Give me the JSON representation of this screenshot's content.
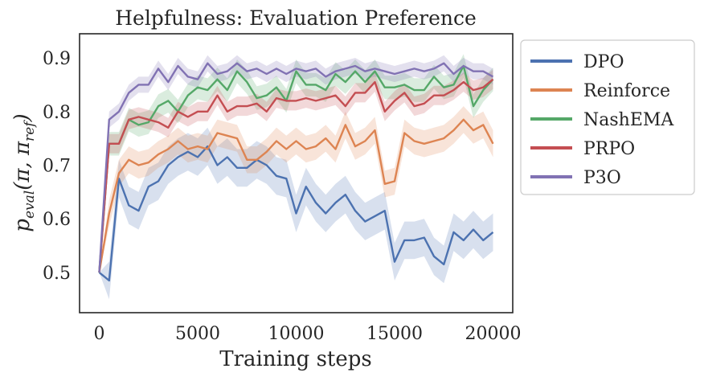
{
  "chart_data": {
    "type": "line",
    "title": "Helpfulness: Evaluation Preference",
    "xlabel": "Training steps",
    "ylabel": "p_eval(π, π_ref)",
    "ylabel_parts": {
      "p": "p",
      "sub": "eval",
      "open": "(π, π",
      "sub2": "ref",
      "close": ")"
    },
    "xlim": [
      -1000,
      21000
    ],
    "ylim": [
      0.425,
      0.945
    ],
    "xticks": [
      0,
      5000,
      10000,
      15000,
      20000
    ],
    "yticks": [
      0.5,
      0.6,
      0.7,
      0.8,
      0.9
    ],
    "xtick_labels": [
      "0",
      "5000",
      "10000",
      "15000",
      "20000"
    ],
    "ytick_labels": [
      "0.5",
      "0.6",
      "0.7",
      "0.8",
      "0.9"
    ],
    "grid": false,
    "legend_position": "outside-right",
    "x": [
      0,
      500,
      1000,
      1500,
      2000,
      2500,
      3000,
      3500,
      4000,
      4500,
      5000,
      5500,
      6000,
      6500,
      7000,
      7500,
      8000,
      8500,
      9000,
      9500,
      10000,
      10500,
      11000,
      11500,
      12000,
      12500,
      13000,
      13500,
      14000,
      14500,
      15000,
      15500,
      16000,
      16500,
      17000,
      17500,
      18000,
      18500,
      19000,
      19500,
      20000
    ],
    "series": [
      {
        "name": "DPO",
        "color": "#4c72b0",
        "values": [
          0.5,
          0.485,
          0.675,
          0.625,
          0.615,
          0.66,
          0.67,
          0.7,
          0.715,
          0.725,
          0.715,
          0.735,
          0.7,
          0.715,
          0.695,
          0.695,
          0.71,
          0.7,
          0.68,
          0.675,
          0.61,
          0.66,
          0.63,
          0.61,
          0.63,
          0.645,
          0.615,
          0.595,
          0.605,
          0.615,
          0.52,
          0.56,
          0.56,
          0.565,
          0.53,
          0.515,
          0.575,
          0.56,
          0.58,
          0.56,
          0.575
        ],
        "band": 0.035
      },
      {
        "name": "Reinforce",
        "color": "#dd8452",
        "values": [
          0.5,
          0.61,
          0.685,
          0.71,
          0.7,
          0.705,
          0.72,
          0.73,
          0.745,
          0.73,
          0.735,
          0.73,
          0.76,
          0.755,
          0.75,
          0.71,
          0.71,
          0.725,
          0.745,
          0.73,
          0.745,
          0.73,
          0.735,
          0.75,
          0.73,
          0.775,
          0.735,
          0.745,
          0.765,
          0.665,
          0.67,
          0.76,
          0.745,
          0.74,
          0.745,
          0.75,
          0.765,
          0.785,
          0.765,
          0.775,
          0.74
        ],
        "band": 0.025
      },
      {
        "name": "NashEMA",
        "color": "#55a868",
        "values": [
          0.5,
          0.74,
          0.74,
          0.785,
          0.775,
          0.78,
          0.81,
          0.82,
          0.8,
          0.83,
          0.845,
          0.84,
          0.86,
          0.84,
          0.875,
          0.855,
          0.825,
          0.83,
          0.845,
          0.82,
          0.875,
          0.85,
          0.85,
          0.84,
          0.87,
          0.855,
          0.875,
          0.855,
          0.875,
          0.845,
          0.845,
          0.85,
          0.84,
          0.84,
          0.865,
          0.845,
          0.85,
          0.885,
          0.81,
          0.84,
          0.86
        ],
        "band": 0.022
      },
      {
        "name": "PRPO",
        "color": "#c44e52",
        "values": [
          0.5,
          0.74,
          0.74,
          0.785,
          0.79,
          0.785,
          0.78,
          0.77,
          0.8,
          0.79,
          0.8,
          0.8,
          0.83,
          0.8,
          0.81,
          0.81,
          0.815,
          0.8,
          0.825,
          0.82,
          0.82,
          0.825,
          0.82,
          0.825,
          0.83,
          0.81,
          0.835,
          0.835,
          0.855,
          0.8,
          0.82,
          0.835,
          0.81,
          0.815,
          0.83,
          0.83,
          0.84,
          0.855,
          0.84,
          0.845,
          0.86
        ],
        "band": 0.018
      },
      {
        "name": "P3O",
        "color": "#8172b3",
        "values": [
          0.5,
          0.785,
          0.8,
          0.835,
          0.85,
          0.85,
          0.88,
          0.855,
          0.885,
          0.865,
          0.86,
          0.89,
          0.87,
          0.875,
          0.89,
          0.875,
          0.88,
          0.87,
          0.88,
          0.87,
          0.88,
          0.875,
          0.88,
          0.865,
          0.875,
          0.88,
          0.885,
          0.875,
          0.88,
          0.875,
          0.87,
          0.875,
          0.88,
          0.875,
          0.88,
          0.89,
          0.87,
          0.885,
          0.875,
          0.875,
          0.865
        ],
        "band": 0.015
      }
    ]
  }
}
